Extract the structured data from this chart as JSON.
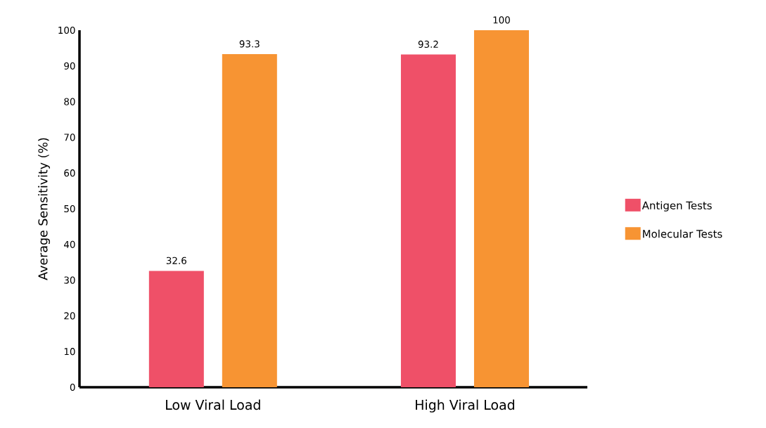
{
  "chart_data": {
    "type": "bar",
    "ylabel": "Average Sensitivity (%)",
    "categories": [
      "Low Viral Load",
      "High Viral Load"
    ],
    "series": [
      {
        "name": "Antigen Tests",
        "color": "#ef5068",
        "values": [
          32.6,
          93.2
        ]
      },
      {
        "name": "Molecular Tests",
        "color": "#f79433",
        "values": [
          93.3,
          100
        ]
      }
    ],
    "ylim": [
      0,
      100
    ],
    "yticks": [
      0,
      10,
      20,
      30,
      40,
      50,
      60,
      70,
      80,
      90,
      100
    ],
    "data_labels": true,
    "legend": "right",
    "grid": false
  }
}
